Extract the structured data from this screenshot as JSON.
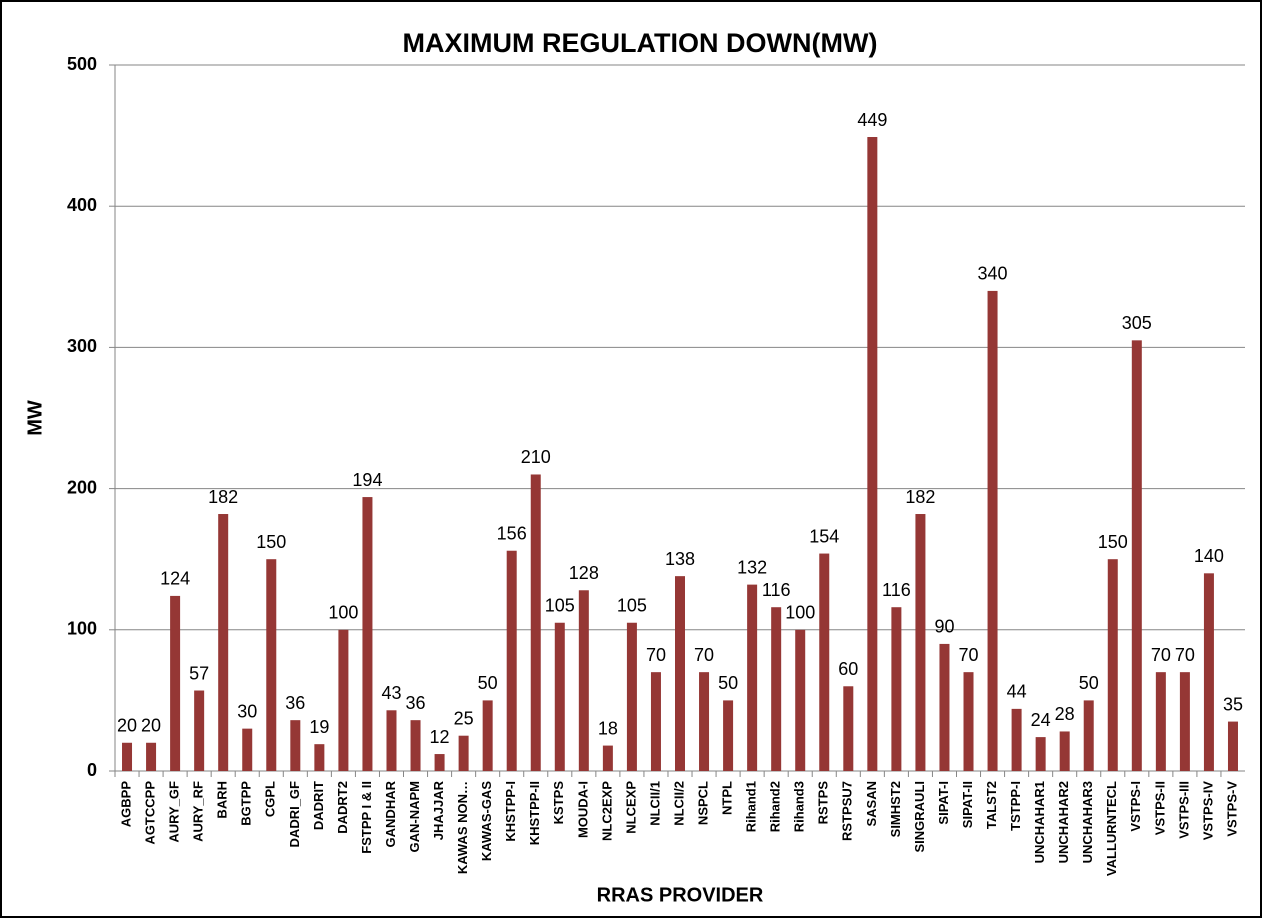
{
  "chart_data": {
    "type": "bar",
    "title": "MAXIMUM REGULATION DOWN(MW)",
    "x_label": "RRAS PROVIDER",
    "y_label": "MW",
    "categories": [
      "AGBPP",
      "AGTCCPP",
      "AURY_GF",
      "AURY_RF",
      "BARH",
      "BGTPP",
      "CGPL",
      "DADRI_GF",
      "DADRIT",
      "DADRT2",
      "FSTPP I & II",
      "GANDHAR",
      "GAN-NAPM",
      "JHAJJAR",
      "KAWAS NON…",
      "KAWAS-GAS",
      "KHSTPP-I",
      "KHSTPP-II",
      "KSTPS",
      "MOUDA-I",
      "NLC2EXP",
      "NLCEXP",
      "NLCII/1",
      "NLCII/2",
      "NSPCL",
      "NTPL",
      "Rihand1",
      "Rihand2",
      "Rihand3",
      "RSTPS",
      "RSTPSU7",
      "SASAN",
      "SIMHST2",
      "SINGRAULI",
      "SIPAT-I",
      "SIPAT-II",
      "TALST2",
      "TSTPP-I",
      "UNCHAHAR1",
      "UNCHAHAR2",
      "UNCHAHAR3",
      "VALLURNTECL",
      "VSTPS-I",
      "VSTPS-II",
      "VSTPS-III",
      "VSTPS-IV",
      "VSTPS-V"
    ],
    "values": [
      20,
      20,
      124,
      57,
      182,
      30,
      150,
      36,
      19,
      100,
      194,
      43,
      36,
      12,
      25,
      50,
      156,
      210,
      105,
      128,
      18,
      105,
      70,
      138,
      70,
      50,
      132,
      116,
      100,
      154,
      60,
      449,
      116,
      182,
      90,
      70,
      340,
      44,
      24,
      28,
      50,
      150,
      305,
      70,
      70,
      140,
      35
    ],
    "color": "#953735",
    "ylim": [
      0,
      500
    ],
    "yticks": [
      0,
      100,
      200,
      300,
      400,
      500
    ],
    "grid": true
  }
}
